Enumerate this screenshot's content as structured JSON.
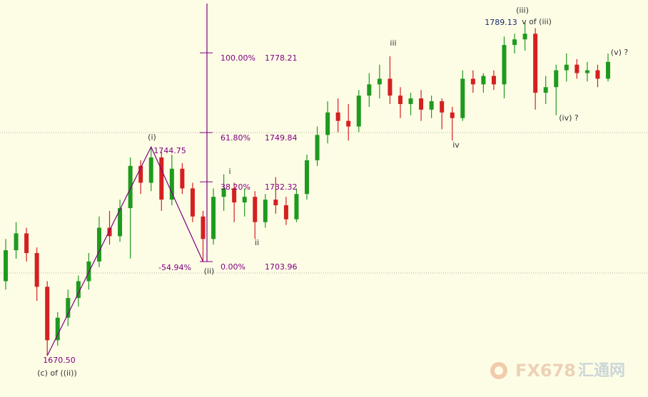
{
  "chart_data": {
    "type": "candlestick",
    "ylim": [
      1655.8,
      1797.0
    ],
    "up_color": "#1f9a1f",
    "down_color": "#d42020",
    "annotation_color": "#800080",
    "open": [
      1697,
      1708,
      1714,
      1707,
      1695,
      1676,
      1684,
      1691,
      1697,
      1704,
      1716,
      1713,
      1723,
      1738,
      1732,
      1741,
      1726,
      1737,
      1730,
      1720,
      1712,
      1727,
      1730,
      1725,
      1727,
      1718,
      1726,
      1724,
      1719,
      1728,
      1740,
      1749,
      1757,
      1754,
      1752,
      1763,
      1767,
      1769,
      1763,
      1760,
      1762,
      1758,
      1761,
      1757,
      1755,
      1769,
      1767,
      1770,
      1767,
      1781,
      1783,
      1785,
      1764,
      1766,
      1772,
      1774,
      1771,
      1772,
      1769
    ],
    "high": [
      1712,
      1718,
      1716,
      1709,
      1697,
      1686,
      1694,
      1699,
      1707,
      1720,
      1722,
      1726,
      1741,
      1740,
      1744.75,
      1743,
      1742,
      1739,
      1732,
      1722,
      1730,
      1735,
      1732,
      1730,
      1729,
      1728,
      1734,
      1727,
      1730,
      1742,
      1752,
      1761,
      1762,
      1760,
      1765,
      1771,
      1774,
      1777,
      1766,
      1764,
      1765,
      1763,
      1762,
      1759,
      1772,
      1772,
      1771,
      1772,
      1784,
      1785,
      1789.13,
      1787,
      1770,
      1774,
      1778,
      1776,
      1775,
      1774,
      1778
    ],
    "low": [
      1694,
      1705,
      1704,
      1690,
      1670.5,
      1674,
      1681,
      1688,
      1694,
      1702,
      1710,
      1711,
      1705,
      1728,
      1729,
      1722,
      1724,
      1728,
      1718,
      1703.96,
      1710,
      1722,
      1718,
      1720,
      1712,
      1716,
      1721,
      1717,
      1718,
      1726,
      1738,
      1746,
      1750,
      1747,
      1750,
      1759,
      1762,
      1760,
      1755,
      1756,
      1754,
      1755,
      1751,
      1747,
      1754,
      1764,
      1764,
      1765,
      1762,
      1778,
      1779,
      1758,
      1760,
      1756,
      1768,
      1769,
      1768,
      1766,
      1768
    ],
    "close": [
      1708,
      1714,
      1707,
      1695,
      1676,
      1684,
      1691,
      1697,
      1704,
      1716,
      1713,
      1723,
      1738,
      1732,
      1741,
      1726,
      1737,
      1730,
      1720,
      1712,
      1727,
      1730,
      1725,
      1727,
      1718,
      1726,
      1724,
      1719,
      1728,
      1740,
      1749,
      1757,
      1754,
      1752,
      1763,
      1767,
      1769,
      1763,
      1760,
      1762,
      1758,
      1761,
      1757,
      1755,
      1769,
      1767,
      1770,
      1767,
      1781,
      1783,
      1785,
      1764,
      1766,
      1772,
      1774,
      1771,
      1772,
      1769,
      1775
    ],
    "fib_levels": [
      {
        "ratio": "100.00%",
        "price": 1778.21
      },
      {
        "ratio": "61.80%",
        "price": 1749.84
      },
      {
        "ratio": "38.20%",
        "price": 1732.32
      },
      {
        "ratio": "0.00%",
        "price": 1703.96
      }
    ],
    "fib_extension": "-54.94%",
    "wave_labels": [
      "(i)",
      "(ii)",
      "i",
      "ii",
      "iii",
      "iv",
      "(iii)",
      "v of (iii)",
      "(iv) ?",
      "(v) ?",
      "(c) of ((ii))"
    ],
    "price_labels": [
      {
        "value": 1670.5,
        "label": "1670.50"
      },
      1744.75,
      1789.13
    ],
    "watermark": [
      "FX678",
      "汇通网"
    ]
  }
}
